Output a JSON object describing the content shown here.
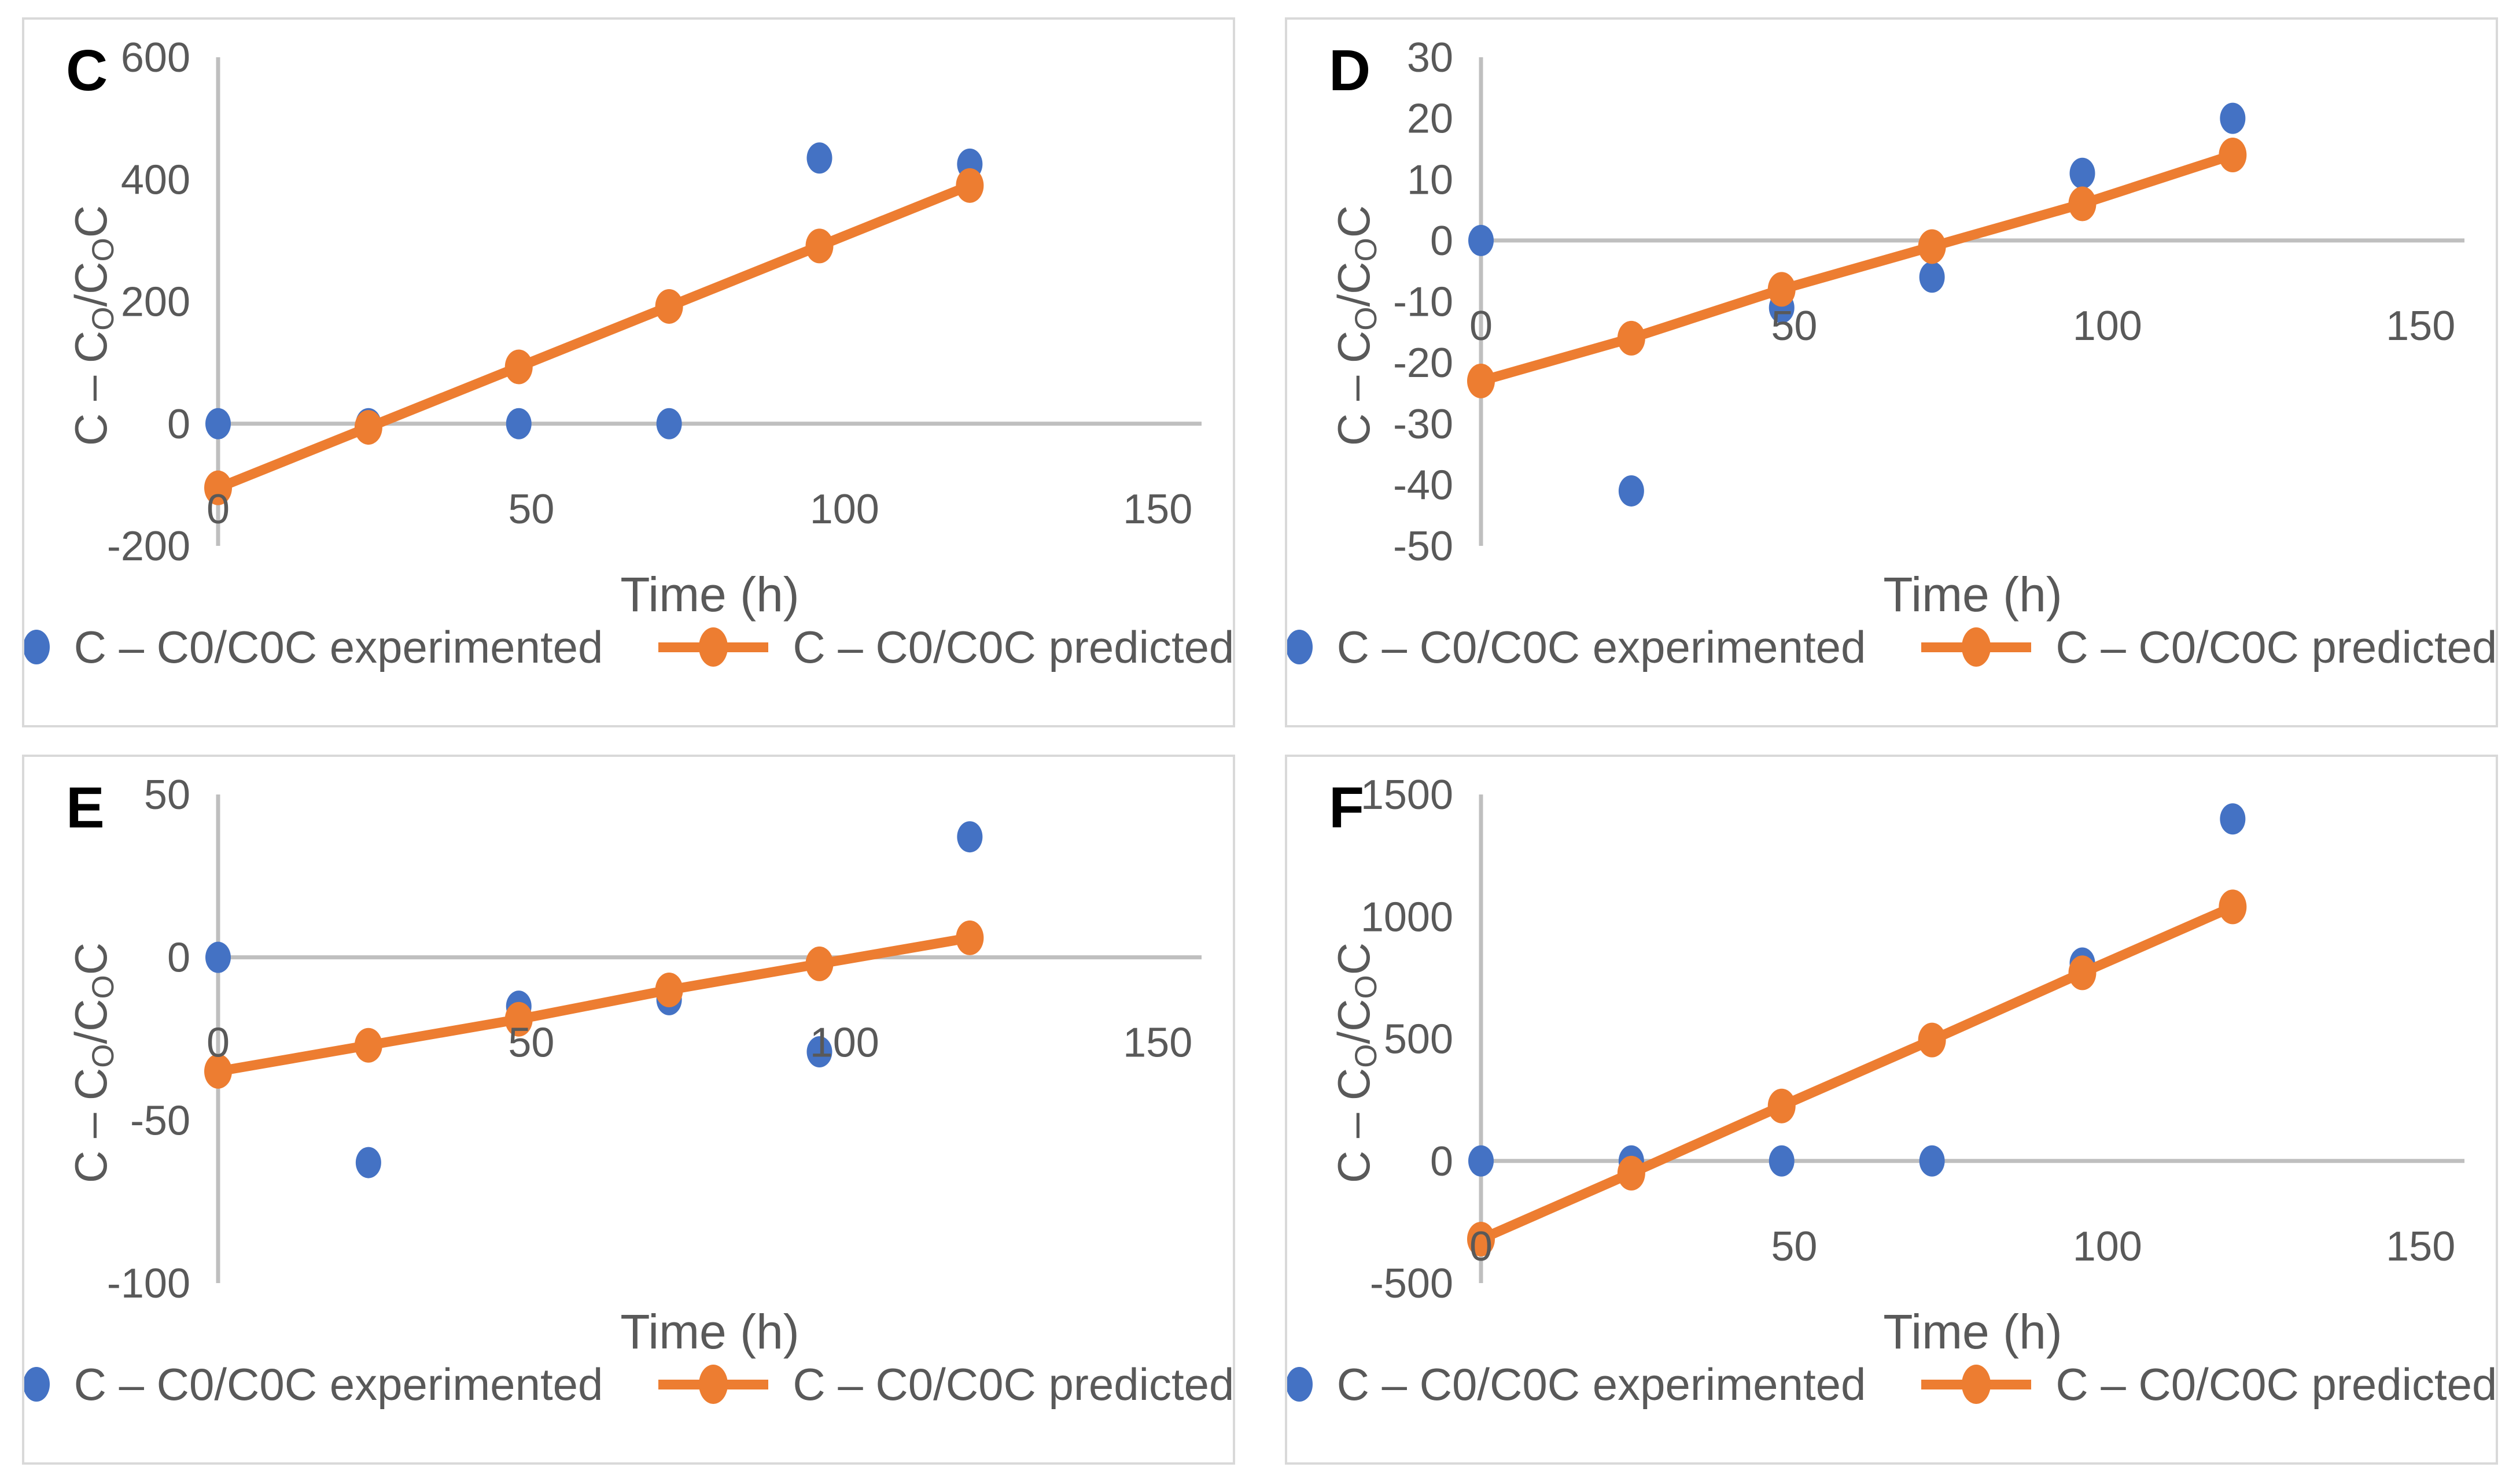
{
  "figure": {
    "background": "#ffffff",
    "panel_border_color": "#d9d9d9",
    "axis_line_color": "#bfbfbf",
    "text_color": "#595959",
    "letter_color": "#000000",
    "experimented_color": "#4472C4",
    "predicted_color": "#ED7D31"
  },
  "axis": {
    "xlabel": "Time (h)",
    "ylabel_plain": "C – CO/COC",
    "ylabel_segments": [
      {
        "text": "C – C",
        "sub": false
      },
      {
        "text": "O",
        "sub": true
      },
      {
        "text": "/C",
        "sub": false
      },
      {
        "text": "O",
        "sub": true
      },
      {
        "text": "C",
        "sub": false
      }
    ]
  },
  "chart_data": [
    {
      "type": "scatter",
      "panel_letter": "C",
      "xlabel": "Time (h)",
      "ylabel": "C – CO/COC",
      "xlim": [
        0,
        157
      ],
      "ylim": [
        -200,
        600
      ],
      "xticks": [
        0,
        50,
        100,
        150
      ],
      "yticks": [
        600,
        400,
        200,
        0,
        -200
      ],
      "x": [
        0,
        24,
        48,
        72,
        96,
        120
      ],
      "legend_position": "bottom",
      "grid": false,
      "series": [
        {
          "name": "C – C0/C0C experimented",
          "style": "scatter",
          "color": "#4472C4",
          "values": [
            0,
            0,
            0,
            0,
            435,
            425
          ]
        },
        {
          "name": "C – C0/C0C predicted",
          "style": "line-marker",
          "color": "#ED7D31",
          "values": [
            -105,
            -6,
            93,
            192,
            291,
            390
          ]
        }
      ]
    },
    {
      "type": "scatter",
      "panel_letter": "D",
      "xlabel": "Time (h)",
      "ylabel": "C – CO/COC",
      "xlim": [
        0,
        157
      ],
      "ylim": [
        -50,
        30
      ],
      "xticks": [
        0,
        50,
        100,
        150
      ],
      "yticks": [
        30,
        20,
        10,
        0,
        -10,
        -20,
        -30,
        -40,
        -50
      ],
      "x": [
        0,
        24,
        48,
        72,
        96,
        120
      ],
      "legend_position": "bottom",
      "grid": false,
      "series": [
        {
          "name": "C – C0/C0C experimented",
          "style": "scatter",
          "color": "#4472C4",
          "values": [
            0,
            -41,
            -11,
            -6,
            11,
            20
          ]
        },
        {
          "name": "C – C0/C0C predicted",
          "style": "line-marker",
          "color": "#ED7D31",
          "values": [
            -23,
            -16,
            -8,
            -1,
            6,
            14
          ]
        }
      ]
    },
    {
      "type": "scatter",
      "panel_letter": "E",
      "xlabel": "Time (h)",
      "ylabel": "C – CO/COC",
      "xlim": [
        0,
        157
      ],
      "ylim": [
        -100,
        50
      ],
      "xticks": [
        0,
        50,
        100,
        150
      ],
      "yticks": [
        50,
        0,
        -50,
        -100
      ],
      "x": [
        0,
        24,
        48,
        72,
        96,
        120
      ],
      "legend_position": "bottom",
      "grid": false,
      "series": [
        {
          "name": "C – C0/C0C experimented",
          "style": "scatter",
          "color": "#4472C4",
          "values": [
            0,
            -63,
            -15,
            -13,
            -29,
            37
          ]
        },
        {
          "name": "C – C0/C0C predicted",
          "style": "line-marker",
          "color": "#ED7D31",
          "values": [
            -35,
            -27,
            -19,
            -10,
            -2,
            6
          ]
        }
      ]
    },
    {
      "type": "scatter",
      "panel_letter": "F",
      "xlabel": "Time (h)",
      "ylabel": "C – CO/COC",
      "xlim": [
        0,
        157
      ],
      "ylim": [
        -500,
        1500
      ],
      "xticks": [
        0,
        50,
        100,
        150
      ],
      "yticks": [
        1500,
        1000,
        500,
        0,
        -500
      ],
      "x": [
        0,
        24,
        48,
        72,
        96,
        120
      ],
      "legend_position": "bottom",
      "grid": false,
      "series": [
        {
          "name": "C – C0/C0C experimented",
          "style": "scatter",
          "color": "#4472C4",
          "values": [
            0,
            0,
            0,
            0,
            810,
            1400
          ]
        },
        {
          "name": "C – C0/C0C predicted",
          "style": "line-marker",
          "color": "#ED7D31",
          "values": [
            -320,
            -50,
            225,
            495,
            770,
            1040
          ]
        }
      ]
    }
  ]
}
